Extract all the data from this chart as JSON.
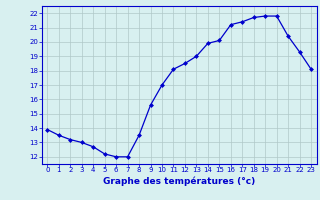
{
  "hours": [
    0,
    1,
    2,
    3,
    4,
    5,
    6,
    7,
    8,
    9,
    10,
    11,
    12,
    13,
    14,
    15,
    16,
    17,
    18,
    19,
    20,
    21,
    22,
    23
  ],
  "temperatures": [
    13.9,
    13.5,
    13.2,
    13.0,
    12.7,
    12.2,
    12.0,
    12.0,
    13.5,
    15.6,
    17.0,
    18.1,
    18.5,
    19.0,
    19.9,
    20.1,
    21.2,
    21.4,
    21.7,
    21.8,
    21.8,
    20.4,
    19.3,
    18.1
  ],
  "xlim": [
    -0.5,
    23.5
  ],
  "ylim": [
    11.5,
    22.5
  ],
  "yticks": [
    12,
    13,
    14,
    15,
    16,
    17,
    18,
    19,
    20,
    21,
    22
  ],
  "xticks": [
    0,
    1,
    2,
    3,
    4,
    5,
    6,
    7,
    8,
    9,
    10,
    11,
    12,
    13,
    14,
    15,
    16,
    17,
    18,
    19,
    20,
    21,
    22,
    23
  ],
  "xlabel": "Graphe des températures (°c)",
  "line_color": "#0000cc",
  "marker": "D",
  "marker_size": 2.5,
  "bg_color": "#d8f0f0",
  "grid_color": "#b0c8c8",
  "tick_color": "#0000cc",
  "border_color": "#0000cc",
  "xlabel_color": "#0000cc"
}
